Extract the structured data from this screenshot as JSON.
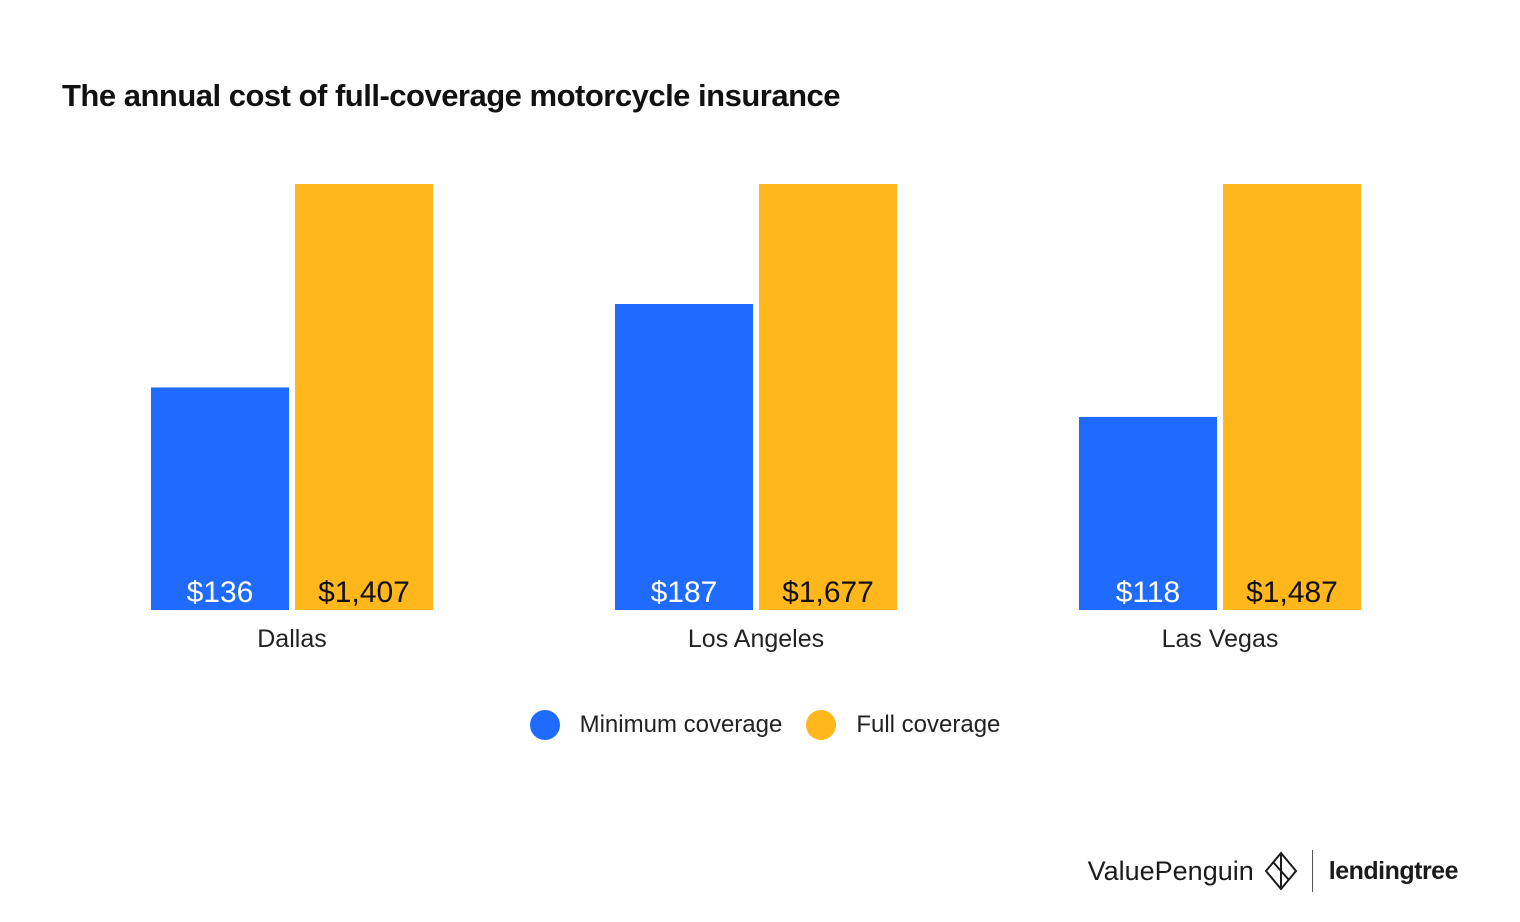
{
  "chart_data": {
    "type": "bar",
    "title": "The annual cost of full-coverage motorcycle insurance",
    "categories": [
      "Dallas",
      "Los Angeles",
      "Las Vegas"
    ],
    "series": [
      {
        "name": "Minimum coverage",
        "color": "#1f6bff",
        "label_color": "#ffffff",
        "values": [
          136,
          187,
          118
        ],
        "labels": [
          "$136",
          "$187",
          "$118"
        ]
      },
      {
        "name": "Full coverage",
        "color": "#ffb71b",
        "label_color": "#111111",
        "values": [
          1407,
          1677,
          1487
        ],
        "labels": [
          "$1,407",
          "$1,677",
          "$1,487"
        ]
      }
    ],
    "grid": false,
    "legend_position": "bottom-center"
  },
  "branding": {
    "valuepenguin": "ValuePenguin",
    "lendingtree": "lendingtree"
  }
}
